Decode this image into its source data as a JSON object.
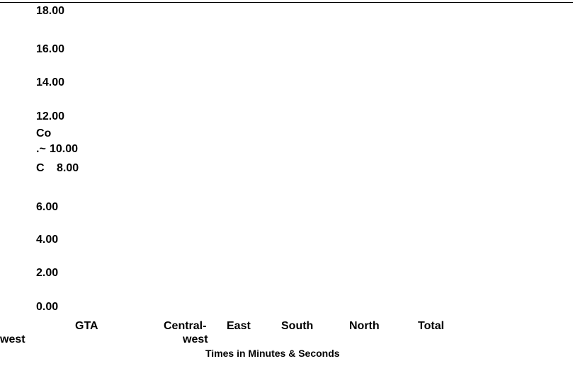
{
  "chart_data": {
    "type": "bar",
    "ytick_labels": [
      "18.00",
      "16.00",
      "14.00",
      "12.00",
      "10.00",
      "8.00",
      "6.00",
      "4.00",
      "2.00",
      "0.00"
    ],
    "ylim": [
      0,
      18
    ],
    "categories": [
      "GTA",
      "Central-west",
      "East",
      "South",
      "North",
      "Total",
      "west"
    ],
    "category_label_lines": {
      "gta": "GTA",
      "central_line1": "Central-",
      "central_line2": "west",
      "east": "East",
      "south": "South",
      "north": "North",
      "total": "Total",
      "west": "west"
    },
    "ylabel_fragments": {
      "frag1": "Co",
      "frag2_prefix": ".~",
      "frag3": "C"
    },
    "xlabel": "Times in Minutes & Seconds",
    "series": [],
    "grid": false,
    "legend": "none"
  }
}
